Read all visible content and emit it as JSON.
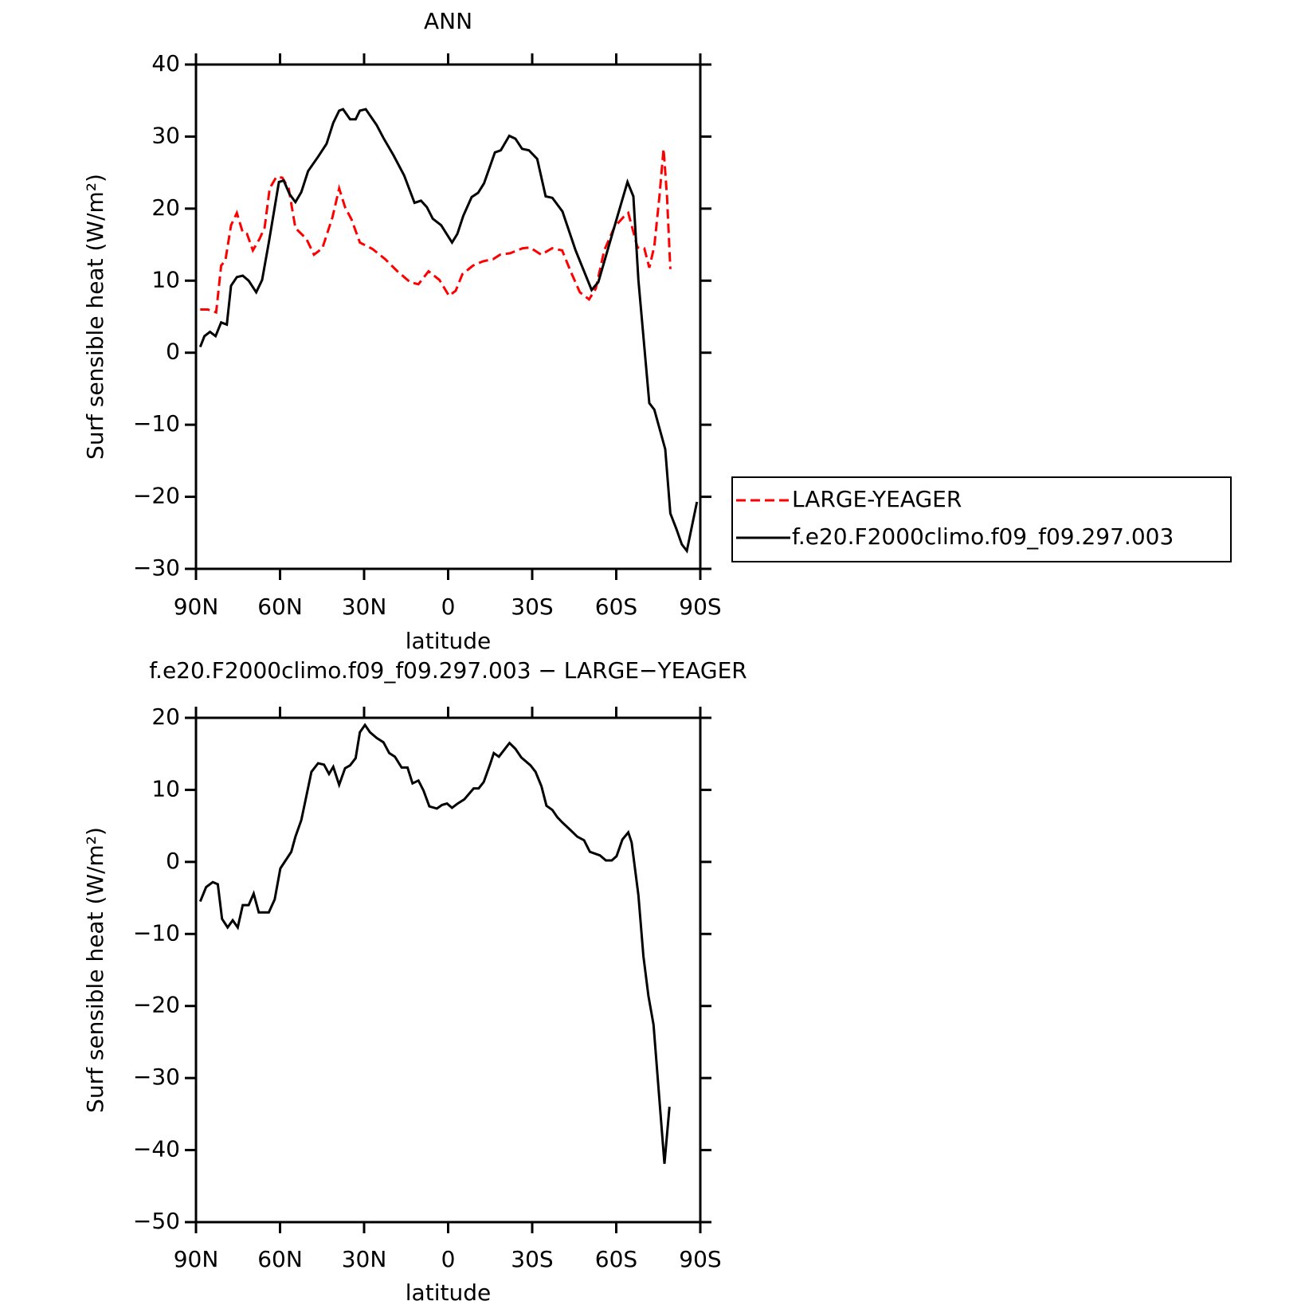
{
  "chart_data": [
    {
      "type": "line",
      "title": "ANN",
      "xlabel": "latitude",
      "ylabel": "Surf sensible heat (W/m²)",
      "xlim": [
        90,
        -90
      ],
      "xticks": [
        {
          "value": 90,
          "label": "90N"
        },
        {
          "value": 60,
          "label": "60N"
        },
        {
          "value": 30,
          "label": "30N"
        },
        0,
        {
          "value": -30,
          "label": "30S"
        },
        {
          "value": -60,
          "label": "60S"
        },
        {
          "value": -90,
          "label": "90S"
        }
      ],
      "ylim": [
        -30,
        40
      ],
      "yticks": [
        {
          "value": -30,
          "label": "−30"
        },
        {
          "value": -20,
          "label": "−20"
        },
        {
          "value": -10,
          "label": "−10"
        },
        0,
        10,
        20,
        30,
        40
      ],
      "legend": "right",
      "series": [
        {
          "name": "LARGE-YEAGER",
          "color": "#ff0000",
          "line_style": "dashed",
          "x": [
            88.5,
            85.8,
            82.8,
            81,
            79.5,
            77.5,
            75.4,
            73.3,
            71.8,
            69.7,
            67.3,
            65.5,
            63.7,
            61.3,
            59.2,
            56.9,
            54.5,
            50.6,
            47.9,
            44.9,
            41.3,
            38.9,
            36.8,
            34.5,
            31.5,
            27,
            22.5,
            18.1,
            13.6,
            10.6,
            7,
            3.1,
            -0.3,
            -2.7,
            -5.1,
            -8.9,
            -12.5,
            -16.1,
            -18.5,
            -22.1,
            -26.6,
            -29.3,
            -33.2,
            -37.1,
            -40.7,
            -43.7,
            -47,
            -50.3,
            -52.7,
            -55.7,
            -59.3,
            -62.5,
            -64.3,
            -67.6,
            -70,
            -71.8,
            -73.6,
            -75.4,
            -76.9,
            -78.1,
            -79.3
          ],
          "values": [
            6,
            6,
            5.6,
            12.1,
            12.8,
            17.7,
            19.4,
            16.7,
            16.5,
            14.2,
            15.8,
            17.4,
            22.8,
            24.4,
            24.3,
            22.8,
            17.3,
            15.8,
            13.6,
            14.5,
            18.8,
            22.8,
            20.2,
            18.5,
            15.3,
            14.4,
            13,
            11.3,
            9.8,
            9.5,
            11.3,
            10.1,
            7.9,
            8.6,
            10.9,
            12.1,
            12.7,
            13,
            13.6,
            13.8,
            14.5,
            14.6,
            13.6,
            14.5,
            14.2,
            11.3,
            8.4,
            7.4,
            8.9,
            14.2,
            17.4,
            18.8,
            19.4,
            14.6,
            14.5,
            11.8,
            14.8,
            21.7,
            28.3,
            21.7,
            11.6
          ]
        },
        {
          "name": "f.e20.F2000climo.f09_f09.297.003",
          "color": "#000000",
          "line_style": "solid",
          "x": [
            88.5,
            87,
            85,
            83,
            81,
            79,
            77.5,
            75.4,
            73.3,
            71.2,
            68.5,
            66.4,
            64,
            60.4,
            58.7,
            56.6,
            54.5,
            52.4,
            50,
            46.4,
            43.4,
            41,
            38.9,
            37.5,
            35,
            33,
            31.5,
            29.4,
            25.5,
            23.1,
            19.5,
            15.7,
            12,
            9.7,
            7.6,
            5.5,
            2.5,
            -1.4,
            -3.3,
            -5.4,
            -8.4,
            -10.7,
            -12.8,
            -16.7,
            -18.8,
            -21.8,
            -24,
            -26.4,
            -28.8,
            -31.8,
            -34.8,
            -37.2,
            -40.8,
            -45.5,
            -48.2,
            -51.2,
            -53.6,
            -56.6,
            -60.4,
            -64,
            -66.1,
            -67.9,
            -71.8,
            -73.6,
            -77.5,
            -79.3,
            -81.4,
            -83.4,
            -85.2,
            -88.8
          ],
          "values": [
            0.8,
            2.3,
            2.9,
            2.3,
            4.2,
            3.9,
            9.3,
            10.5,
            10.7,
            10,
            8.4,
            10.1,
            15.3,
            23.7,
            23.9,
            22,
            20.9,
            22.3,
            25.2,
            27.2,
            29,
            31.9,
            33.6,
            33.8,
            32.4,
            32.4,
            33.6,
            33.8,
            31.6,
            29.8,
            27.4,
            24.6,
            20.8,
            21.1,
            20.2,
            18.6,
            17.7,
            15.3,
            16.5,
            19,
            21.6,
            22.2,
            23.5,
            27.8,
            28.1,
            30.1,
            29.7,
            28.3,
            28.1,
            26.9,
            21.7,
            21.5,
            19.6,
            14.2,
            11.6,
            8.7,
            9.8,
            13.8,
            18.9,
            23.7,
            21.7,
            10.1,
            -7,
            -7.9,
            -13.4,
            -22.3,
            -24.4,
            -26.6,
            -27.5,
            -20.7
          ]
        }
      ]
    },
    {
      "type": "line",
      "title": "f.e20.F2000climo.f09_f09.297.003 − LARGE−YEAGER",
      "xlabel": "latitude",
      "ylabel": "Surf sensible heat (W/m²)",
      "xlim": [
        90,
        -90
      ],
      "xticks": [
        {
          "value": 90,
          "label": "90N"
        },
        {
          "value": 60,
          "label": "60N"
        },
        {
          "value": 30,
          "label": "30N"
        },
        0,
        {
          "value": -30,
          "label": "30S"
        },
        {
          "value": -60,
          "label": "60S"
        },
        {
          "value": -90,
          "label": "90S"
        }
      ],
      "ylim": [
        -50,
        20
      ],
      "yticks": [
        {
          "value": -50,
          "label": "−50"
        },
        {
          "value": -40,
          "label": "−40"
        },
        {
          "value": -30,
          "label": "−30"
        },
        {
          "value": -20,
          "label": "−20"
        },
        {
          "value": -10,
          "label": "−10"
        },
        0,
        10,
        20
      ],
      "series": [
        {
          "color": "#000000",
          "line_style": "solid",
          "x": [
            88.5,
            86.4,
            84,
            82.2,
            80.7,
            78.7,
            76.9,
            75.1,
            73.3,
            71.2,
            69.4,
            67.6,
            64,
            61.9,
            59.9,
            56,
            54.5,
            52.4,
            48.8,
            46.4,
            44.3,
            42.5,
            41,
            38.9,
            36.8,
            35,
            33,
            31.5,
            29.7,
            27.9,
            25.5,
            23.1,
            21,
            19,
            16.6,
            14.5,
            12.7,
            10.6,
            8.8,
            6.7,
            4,
            2.2,
            0.4,
            -1.4,
            -3.4,
            -5.8,
            -9.1,
            -10.9,
            -12.7,
            -15.1,
            -16.3,
            -18.1,
            -21.9,
            -24,
            -26.1,
            -29.4,
            -31.2,
            -33.3,
            -35.1,
            -37.2,
            -39,
            -40.7,
            -44,
            -46.1,
            -48.5,
            -50.6,
            -54.2,
            -56.3,
            -58.4,
            -60.1,
            -62.2,
            -64.3,
            -65.5,
            -67.9,
            -69.7,
            -71.5,
            -73.3,
            -77.2,
            -79
          ],
          "values": [
            -5.5,
            -3.5,
            -2.8,
            -3.1,
            -7.9,
            -9.1,
            -8.1,
            -9.1,
            -6,
            -6,
            -4.4,
            -7,
            -7,
            -5.2,
            -0.9,
            1.4,
            3.5,
            5.8,
            12.5,
            13.7,
            13.5,
            12.2,
            13.2,
            10.7,
            13,
            13.4,
            14.4,
            18,
            19,
            18,
            17.2,
            16.6,
            15.1,
            14.6,
            13.1,
            13.1,
            10.9,
            11.3,
            9.9,
            7.7,
            7.4,
            7.9,
            8.1,
            7.5,
            8.1,
            8.7,
            10.2,
            10.2,
            11.1,
            13.7,
            15.1,
            14.6,
            16.5,
            15.7,
            14.5,
            13.4,
            12.5,
            10.5,
            7.8,
            7.2,
            6.2,
            5.5,
            4.3,
            3.5,
            3,
            1.4,
            0.9,
            0.2,
            0.2,
            0.8,
            3.1,
            4.1,
            2.7,
            -4.6,
            -13.1,
            -18.6,
            -22.6,
            -41.9,
            -34
          ]
        }
      ]
    }
  ]
}
